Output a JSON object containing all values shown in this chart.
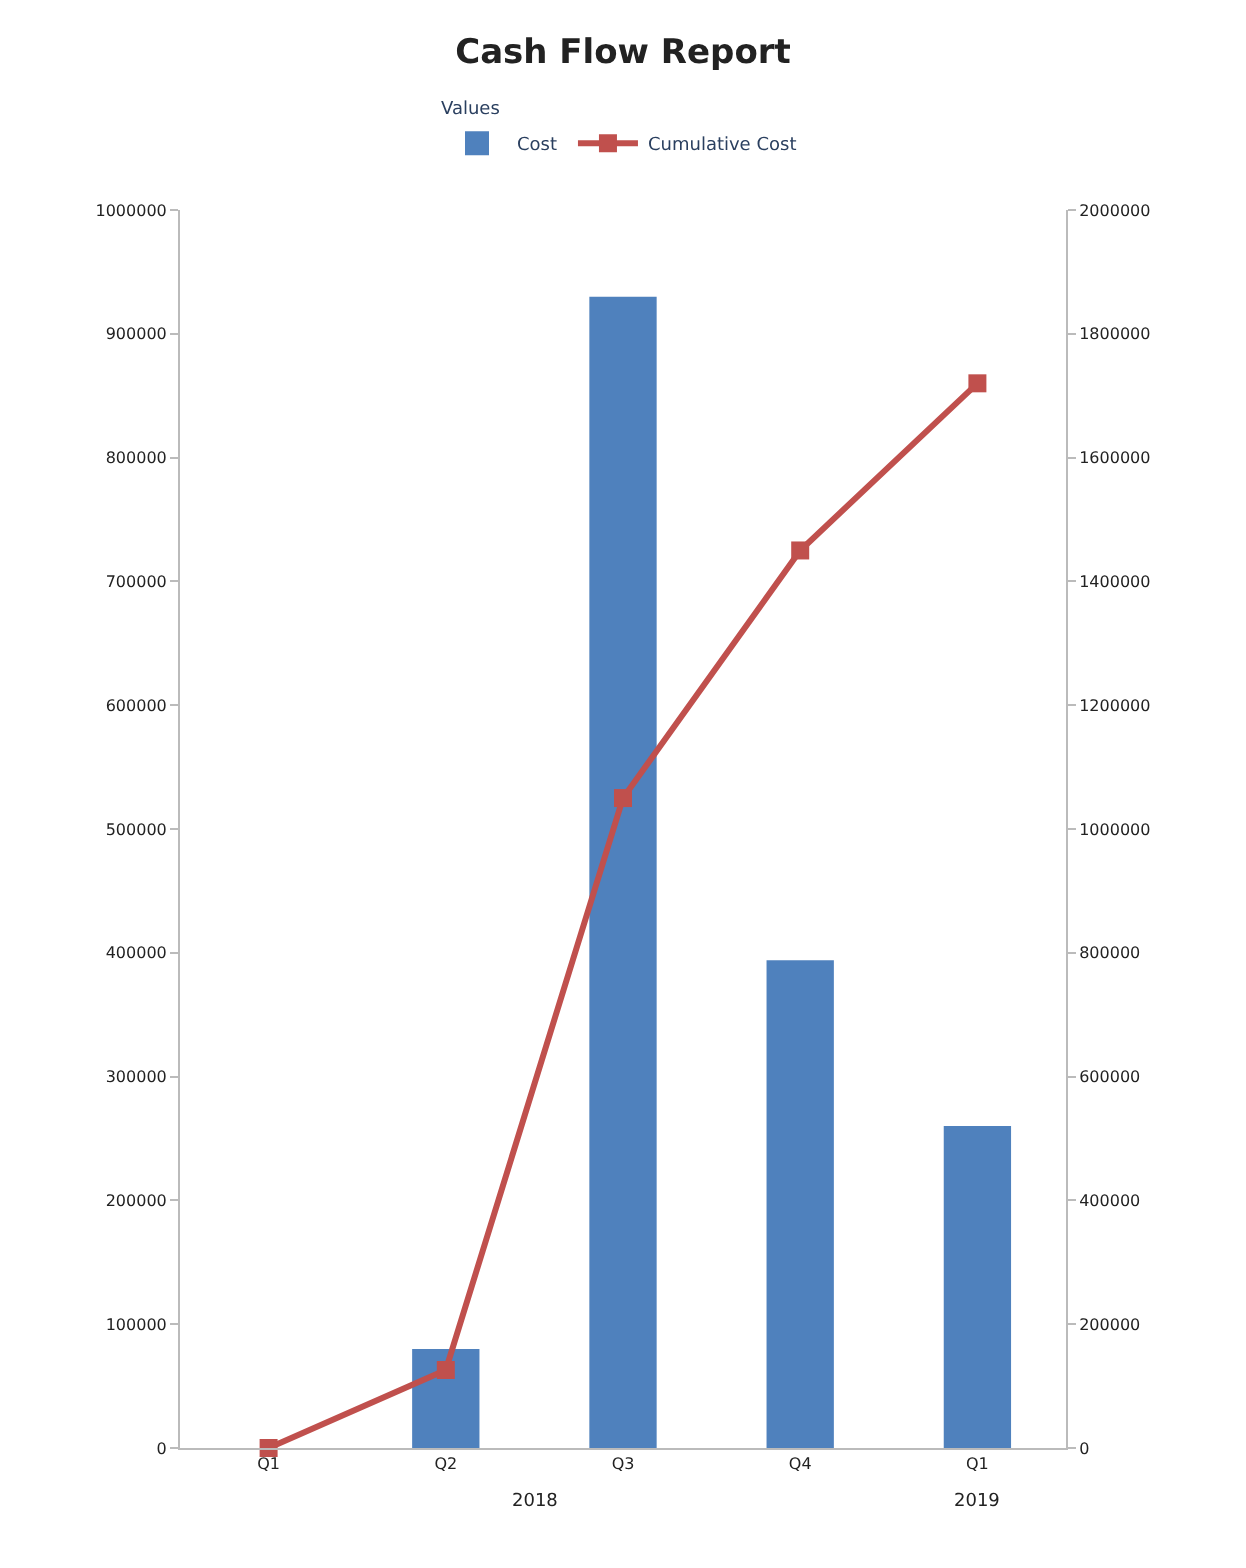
{
  "chart_data": {
    "type": "bar",
    "title": "Cash Flow Report",
    "legend_title": "Values",
    "categories": [
      "Q1",
      "Q2",
      "Q3",
      "Q4",
      "Q1"
    ],
    "series": [
      {
        "name": "Cost",
        "color": "#4f81bd",
        "values": [
          0,
          80000,
          930000,
          394000,
          260000
        ]
      },
      {
        "name": "Cumulative Cost",
        "type": "line",
        "axis": "y2",
        "color": "#c0504d",
        "marker": "square",
        "values": [
          0,
          126000,
          1050000,
          1450000,
          1720000
        ]
      }
    ],
    "ylim": [
      0,
      1000000
    ],
    "yticks": [
      0,
      100000,
      200000,
      300000,
      400000,
      500000,
      600000,
      700000,
      800000,
      900000,
      1000000
    ],
    "y2lim": [
      0,
      2000000
    ],
    "y2ticks": [
      0,
      200000,
      400000,
      600000,
      800000,
      1000000,
      1200000,
      1400000,
      1600000,
      1800000,
      2000000
    ],
    "annotations": [
      "2018",
      "2019"
    ],
    "legend": "top"
  }
}
